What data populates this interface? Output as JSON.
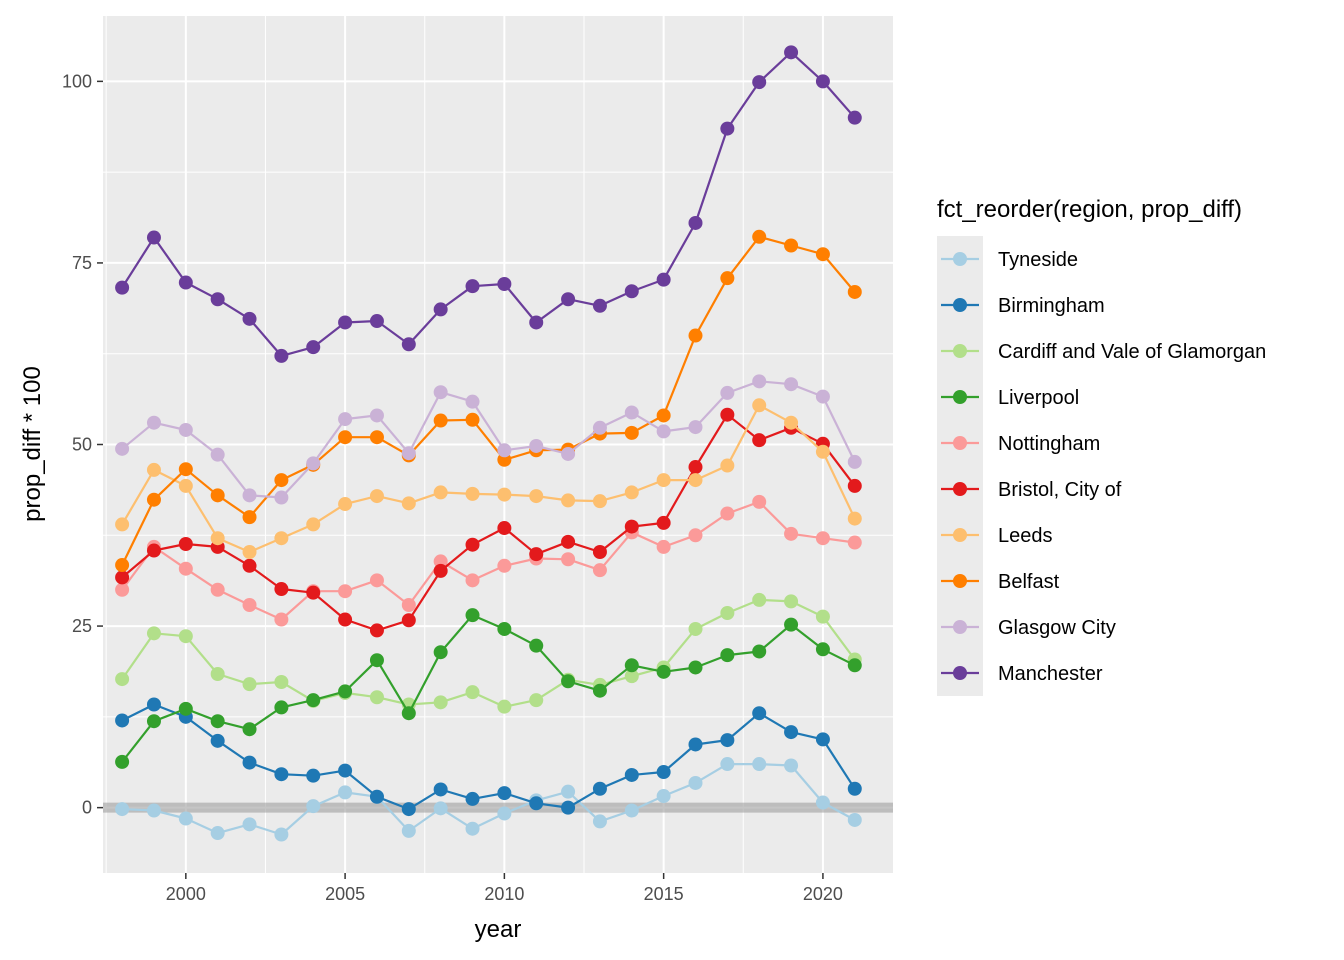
{
  "chart_data": {
    "type": "line",
    "title": "",
    "xlabel": "year",
    "ylabel": "prop_diff * 100",
    "xlim": [
      1997.4,
      2022.2
    ],
    "ylim": [
      -9,
      109
    ],
    "x_ticks": [
      2000,
      2005,
      2010,
      2015,
      2020
    ],
    "y_ticks": [
      0,
      25,
      50,
      75,
      100
    ],
    "x_tick_labels": [
      "2000",
      "2005",
      "2010",
      "2015",
      "2020"
    ],
    "y_tick_labels": [
      "0",
      "25",
      "50",
      "75",
      "100"
    ],
    "hline": 0,
    "grid": true,
    "legend": {
      "title": "fct_reorder(region, prop_diff)",
      "position": "right"
    },
    "x": [
      1998,
      1999,
      2000,
      2001,
      2002,
      2003,
      2004,
      2005,
      2006,
      2007,
      2008,
      2009,
      2010,
      2011,
      2012,
      2013,
      2014,
      2015,
      2016,
      2017,
      2018,
      2019,
      2020,
      2021
    ],
    "series": [
      {
        "name": "Tyneside",
        "color": "#a6cee3",
        "values": [
          -0.2,
          -0.4,
          -1.5,
          -3.5,
          -2.3,
          -3.7,
          0.2,
          2.1,
          1.5,
          -3.2,
          -0.1,
          -2.9,
          -0.8,
          1.0,
          2.2,
          -1.9,
          -0.4,
          1.6,
          3.4,
          6.0,
          6.0,
          5.8,
          0.7,
          -1.7
        ]
      },
      {
        "name": "Birmingham",
        "color": "#1f78b4",
        "values": [
          12.0,
          14.2,
          12.5,
          9.2,
          6.2,
          4.6,
          4.4,
          5.1,
          1.5,
          -0.2,
          2.5,
          1.2,
          2.0,
          0.6,
          0.0,
          2.6,
          4.5,
          4.9,
          8.7,
          9.3,
          13.0,
          10.4,
          9.4,
          2.6
        ]
      },
      {
        "name": "Cardiff and Vale of Glamorgan",
        "color": "#b2df8a",
        "values": [
          17.7,
          24.0,
          23.6,
          18.4,
          17.0,
          17.3,
          14.7,
          15.8,
          15.2,
          14.2,
          14.5,
          15.9,
          13.9,
          14.8,
          17.6,
          16.9,
          18.1,
          19.3,
          24.6,
          26.8,
          28.6,
          28.4,
          26.3,
          20.4
        ]
      },
      {
        "name": "Liverpool",
        "color": "#33a02c",
        "values": [
          6.3,
          11.9,
          13.6,
          11.9,
          10.8,
          13.8,
          14.8,
          16.0,
          20.3,
          13.0,
          21.4,
          26.5,
          24.6,
          22.3,
          17.4,
          16.1,
          19.6,
          18.7,
          19.3,
          21.0,
          21.5,
          25.2,
          21.8,
          19.6
        ]
      },
      {
        "name": "Nottingham",
        "color": "#fb9a99",
        "values": [
          30.0,
          35.9,
          32.9,
          30.0,
          27.9,
          25.9,
          29.8,
          29.8,
          31.3,
          27.9,
          33.9,
          31.3,
          33.3,
          34.3,
          34.2,
          32.7,
          37.9,
          35.9,
          37.5,
          40.5,
          42.1,
          37.7,
          37.1,
          36.5
        ]
      },
      {
        "name": "Bristol, City of",
        "color": "#e31a1c",
        "values": [
          31.7,
          35.4,
          36.3,
          35.9,
          33.3,
          30.1,
          29.6,
          25.9,
          24.4,
          25.8,
          32.6,
          36.2,
          38.5,
          34.9,
          36.6,
          35.2,
          38.7,
          39.2,
          46.9,
          54.1,
          50.6,
          52.3,
          50.1,
          44.3
        ]
      },
      {
        "name": "Leeds",
        "color": "#fdbf6f",
        "values": [
          39.0,
          46.5,
          44.3,
          37.1,
          35.2,
          37.1,
          39.0,
          41.8,
          42.9,
          41.9,
          43.4,
          43.2,
          43.1,
          42.9,
          42.3,
          42.2,
          43.4,
          45.1,
          45.1,
          47.1,
          55.4,
          53.0,
          49.0,
          39.8
        ]
      },
      {
        "name": "Belfast",
        "color": "#ff7f00",
        "values": [
          33.4,
          42.4,
          46.6,
          43.0,
          40.0,
          45.1,
          47.2,
          51.0,
          51.0,
          48.5,
          53.3,
          53.4,
          47.9,
          49.2,
          49.3,
          51.5,
          51.6,
          54.0,
          65.0,
          72.9,
          78.6,
          77.4,
          76.2,
          71.0
        ]
      },
      {
        "name": "Glasgow City",
        "color": "#cab2d6",
        "values": [
          49.4,
          53.0,
          52.0,
          48.6,
          43.0,
          42.7,
          47.4,
          53.5,
          54.0,
          48.8,
          57.2,
          55.9,
          49.2,
          49.8,
          48.7,
          52.3,
          54.4,
          51.8,
          52.4,
          57.1,
          58.7,
          58.3,
          56.6,
          47.6
        ]
      },
      {
        "name": "Manchester",
        "color": "#6a3d9a",
        "values": [
          71.6,
          78.5,
          72.3,
          70.0,
          67.3,
          62.2,
          63.4,
          66.8,
          67.0,
          63.8,
          68.6,
          71.8,
          72.1,
          66.8,
          70.0,
          69.1,
          71.1,
          72.7,
          80.5,
          93.5,
          99.9,
          104.0,
          100.0,
          95.0
        ]
      }
    ]
  }
}
